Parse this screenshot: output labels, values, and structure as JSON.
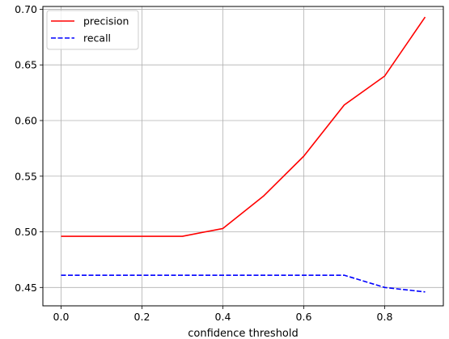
{
  "chart_data": {
    "type": "line",
    "title": "",
    "xlabel": "confidence threshold",
    "ylabel": "",
    "xlim": [
      -0.045,
      0.945
    ],
    "ylim": [
      0.4335,
      0.7025
    ],
    "grid": true,
    "legend_position": "top-left",
    "x_ticks": [
      0.0,
      0.2,
      0.4,
      0.6,
      0.8
    ],
    "x_tick_labels": [
      "0.0",
      "0.2",
      "0.4",
      "0.6",
      "0.8"
    ],
    "y_ticks": [
      0.45,
      0.5,
      0.55,
      0.6,
      0.65,
      0.7
    ],
    "y_tick_labels": [
      "0.45",
      "0.50",
      "0.55",
      "0.60",
      "0.65",
      "0.70"
    ],
    "x": [
      0.0,
      0.1,
      0.2,
      0.3,
      0.4,
      0.5,
      0.6,
      0.7,
      0.8,
      0.9
    ],
    "series": [
      {
        "name": "precision",
        "color": "#ff0000",
        "dash": "solid",
        "values": [
          0.496,
          0.496,
          0.496,
          0.496,
          0.503,
          0.532,
          0.568,
          0.614,
          0.64,
          0.693
        ]
      },
      {
        "name": "recall",
        "color": "#0000ff",
        "dash": "dashed",
        "values": [
          0.461,
          0.461,
          0.461,
          0.461,
          0.461,
          0.461,
          0.461,
          0.461,
          0.45,
          0.446
        ]
      }
    ]
  }
}
